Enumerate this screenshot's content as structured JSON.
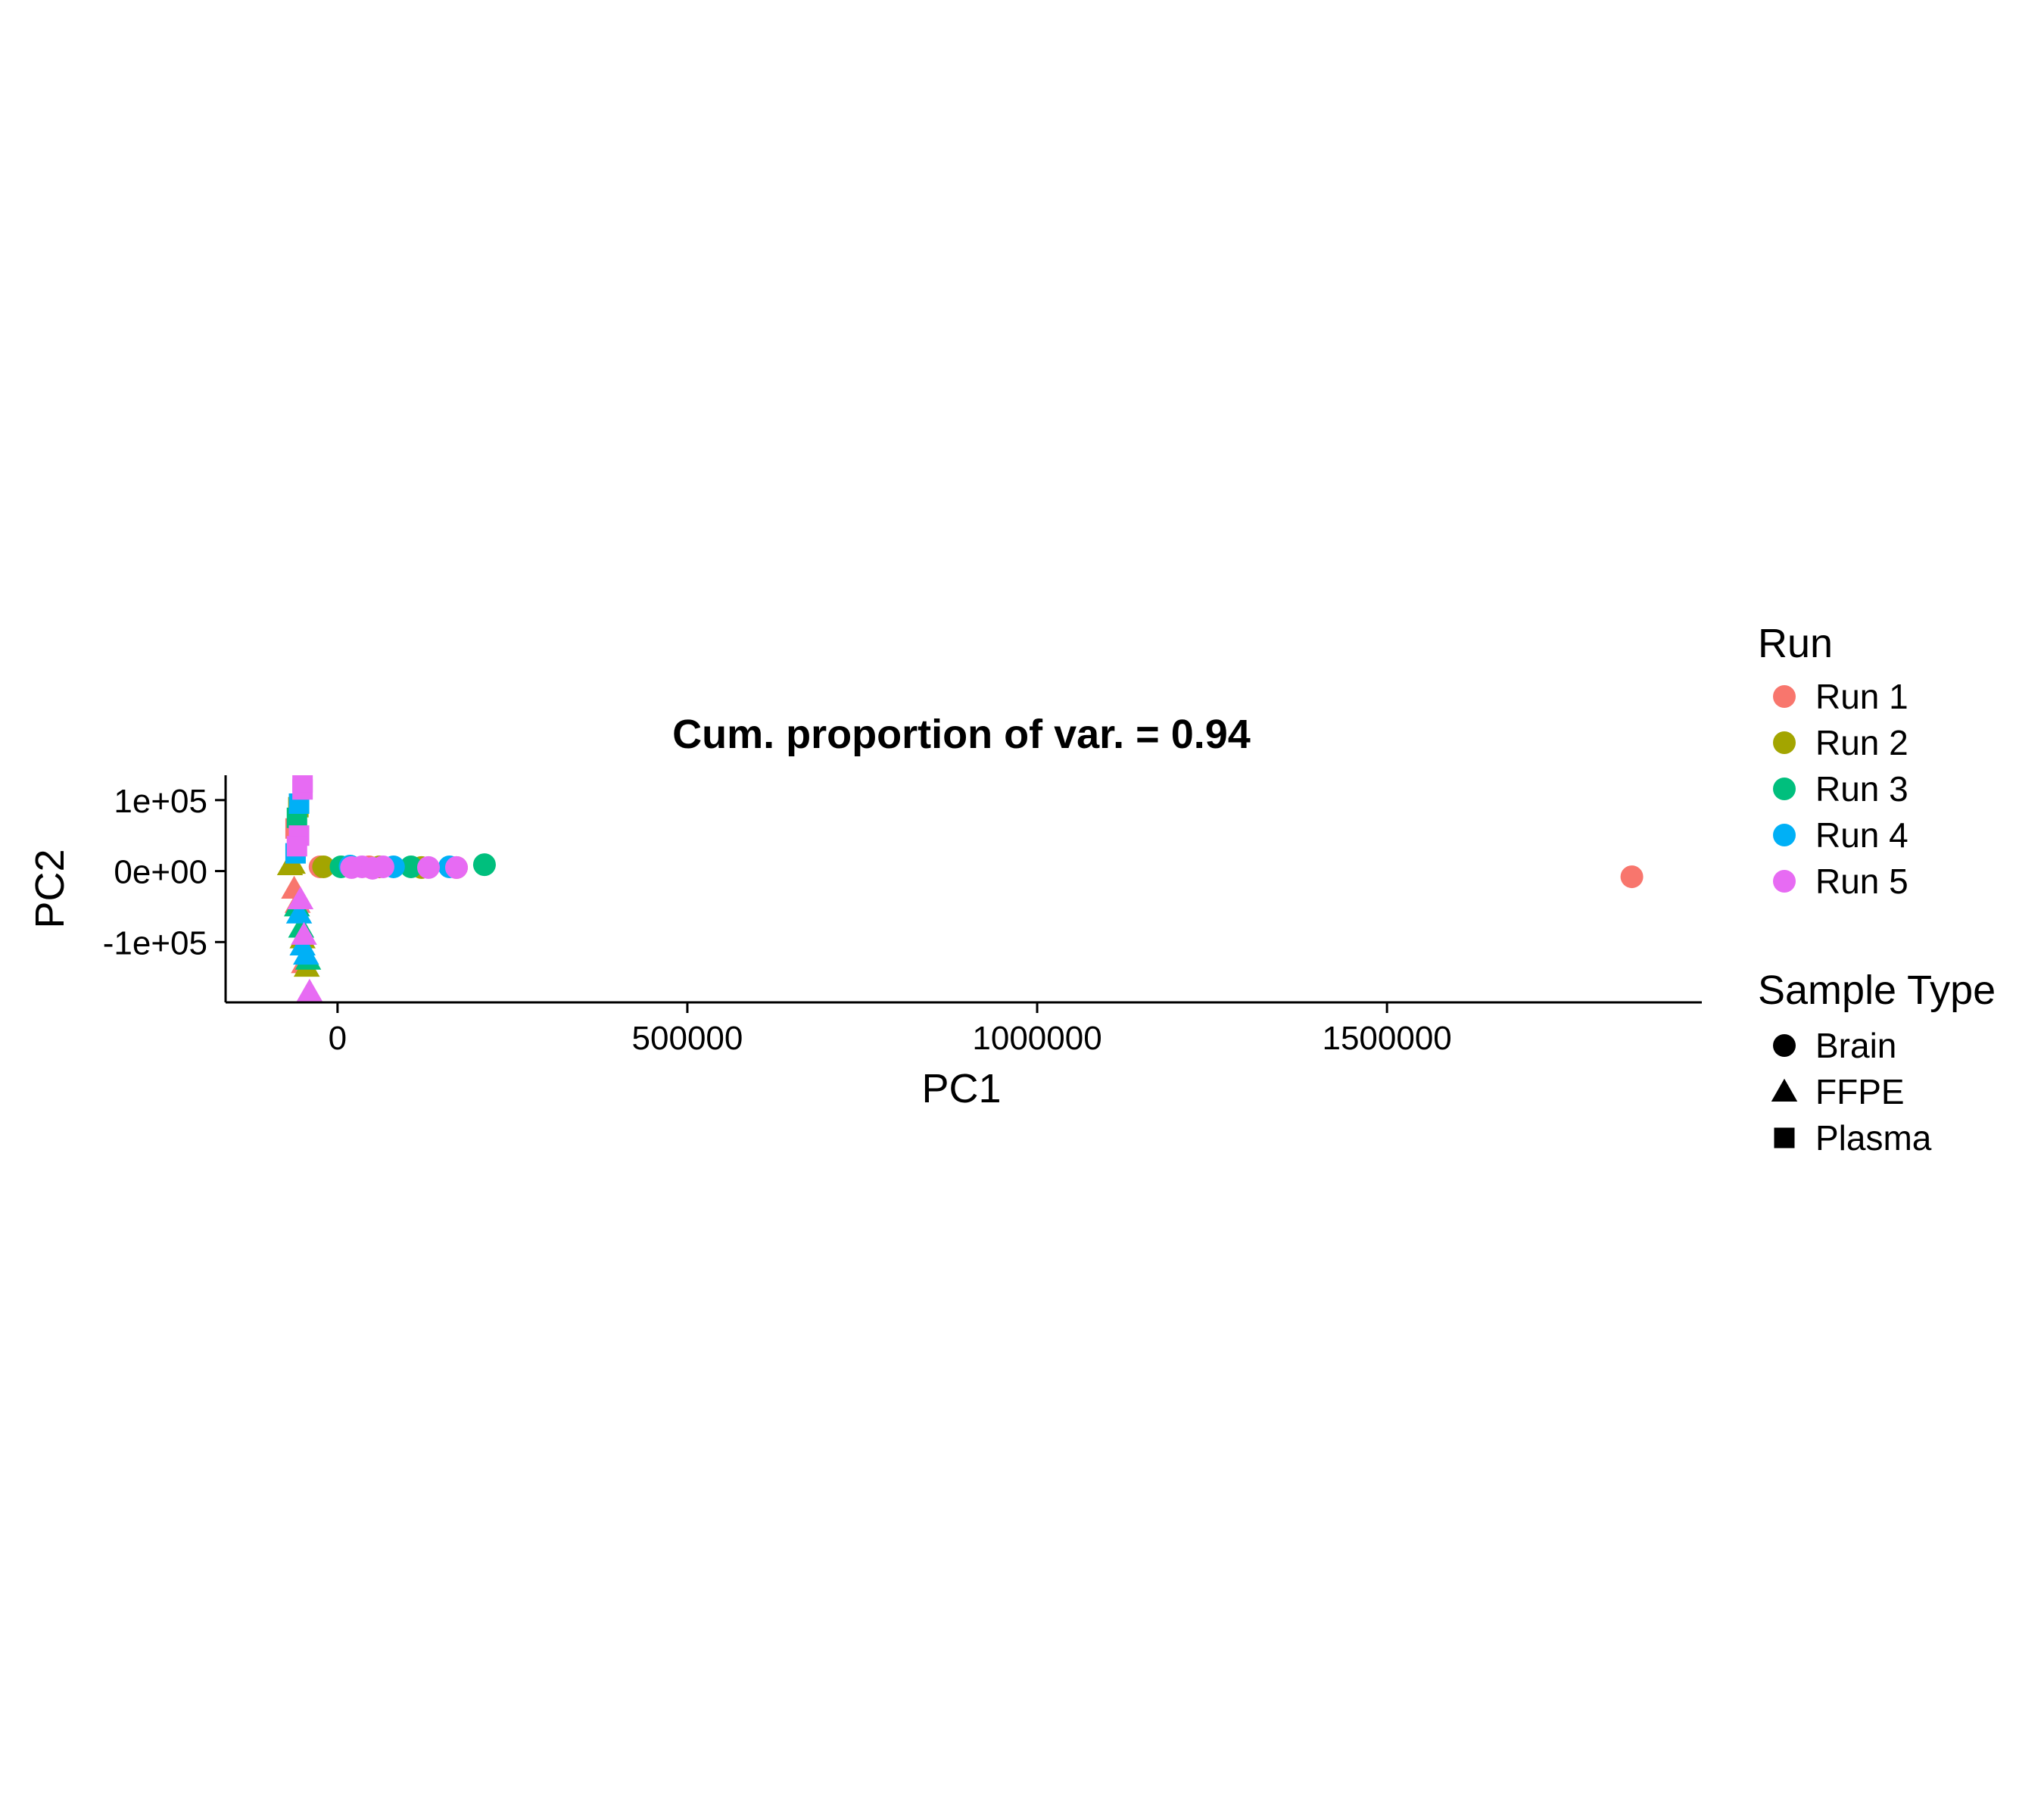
{
  "chart_data": {
    "type": "scatter",
    "title": "Cum. proportion of var. = 0.94",
    "xlabel": "PC1",
    "ylabel": "PC2",
    "xlim": [
      -160000,
      1950000
    ],
    "ylim": [
      -185000,
      135000
    ],
    "x_ticks": [
      0,
      500000,
      1000000,
      1500000
    ],
    "x_tick_labels": [
      "0",
      "500000",
      "1000000",
      "1500000"
    ],
    "y_ticks": [
      100000,
      0,
      -100000
    ],
    "y_tick_labels": [
      "1e+05",
      "0e+00",
      "-1e+05"
    ],
    "grid": false,
    "legend_position": "right",
    "legend": {
      "color_title": "Run",
      "shape_title": "Sample Type",
      "runs": [
        {
          "name": "Run 1",
          "color": "#F8766D"
        },
        {
          "name": "Run 2",
          "color": "#A3A500"
        },
        {
          "name": "Run 3",
          "color": "#00BF7D"
        },
        {
          "name": "Run 4",
          "color": "#00B0F6"
        },
        {
          "name": "Run 5",
          "color": "#E76BF3"
        }
      ],
      "sample_types": [
        {
          "name": "Brain",
          "shape": "circle"
        },
        {
          "name": "FFPE",
          "shape": "triangle"
        },
        {
          "name": "Plasma",
          "shape": "square"
        }
      ]
    },
    "series": [
      {
        "name": "Run 1",
        "points": [
          {
            "x": 1850000,
            "y": -8000,
            "type": "Brain"
          },
          {
            "x": -25000,
            "y": 6000,
            "type": "Brain"
          },
          {
            "x": 45000,
            "y": 6000,
            "type": "Brain"
          },
          {
            "x": 170000,
            "y": 5000,
            "type": "Brain"
          },
          {
            "x": -62000,
            "y": -25000,
            "type": "FFPE"
          },
          {
            "x": -57000,
            "y": -45000,
            "type": "FFPE"
          },
          {
            "x": -48000,
            "y": -130000,
            "type": "FFPE"
          },
          {
            "x": -60000,
            "y": 60000,
            "type": "Plasma"
          }
        ]
      },
      {
        "name": "Run 2",
        "points": [
          {
            "x": -20000,
            "y": 6000,
            "type": "Brain"
          },
          {
            "x": 60000,
            "y": 6000,
            "type": "Brain"
          },
          {
            "x": 120000,
            "y": 5000,
            "type": "Brain"
          },
          {
            "x": -68000,
            "y": 8000,
            "type": "FFPE"
          },
          {
            "x": -64000,
            "y": 10000,
            "type": "FFPE"
          },
          {
            "x": -44000,
            "y": -135000,
            "type": "FFPE"
          },
          {
            "x": -50000,
            "y": -95000,
            "type": "FFPE"
          },
          {
            "x": -56000,
            "y": 90000,
            "type": "Plasma"
          }
        ]
      },
      {
        "name": "Run 3",
        "points": [
          {
            "x": 5000,
            "y": 6000,
            "type": "Brain"
          },
          {
            "x": 105000,
            "y": 6000,
            "type": "Brain"
          },
          {
            "x": 210000,
            "y": 9000,
            "type": "Brain"
          },
          {
            "x": -58000,
            "y": -50000,
            "type": "FFPE"
          },
          {
            "x": -52000,
            "y": -80000,
            "type": "FFPE"
          },
          {
            "x": -42000,
            "y": -125000,
            "type": "FFPE"
          },
          {
            "x": -58000,
            "y": 75000,
            "type": "Plasma"
          }
        ]
      },
      {
        "name": "Run 4",
        "points": [
          {
            "x": 18000,
            "y": 7000,
            "type": "Brain"
          },
          {
            "x": 80000,
            "y": 6000,
            "type": "Brain"
          },
          {
            "x": 160000,
            "y": 6000,
            "type": "Brain"
          },
          {
            "x": -55000,
            "y": -60000,
            "type": "FFPE"
          },
          {
            "x": -50000,
            "y": -105000,
            "type": "FFPE"
          },
          {
            "x": -45000,
            "y": -118000,
            "type": "FFPE"
          },
          {
            "x": -55000,
            "y": 95000,
            "type": "Plasma"
          },
          {
            "x": -60000,
            "y": 25000,
            "type": "Plasma"
          }
        ]
      },
      {
        "name": "Run 5",
        "points": [
          {
            "x": 20000,
            "y": 5000,
            "type": "Brain"
          },
          {
            "x": 35000,
            "y": 6000,
            "type": "Brain"
          },
          {
            "x": 50000,
            "y": 4000,
            "type": "Brain"
          },
          {
            "x": 65000,
            "y": 6000,
            "type": "Brain"
          },
          {
            "x": 130000,
            "y": 5000,
            "type": "Brain"
          },
          {
            "x": 170000,
            "y": 5000,
            "type": "Brain"
          },
          {
            "x": -53000,
            "y": -40000,
            "type": "FFPE"
          },
          {
            "x": -48000,
            "y": -90000,
            "type": "FFPE"
          },
          {
            "x": -40000,
            "y": -170000,
            "type": "FFPE"
          },
          {
            "x": -50000,
            "y": 115000,
            "type": "Plasma"
          },
          {
            "x": -50000,
            "y": 125000,
            "type": "Plasma"
          },
          {
            "x": -55000,
            "y": 50000,
            "type": "Plasma"
          },
          {
            "x": -58000,
            "y": 35000,
            "type": "Plasma"
          }
        ]
      }
    ]
  }
}
